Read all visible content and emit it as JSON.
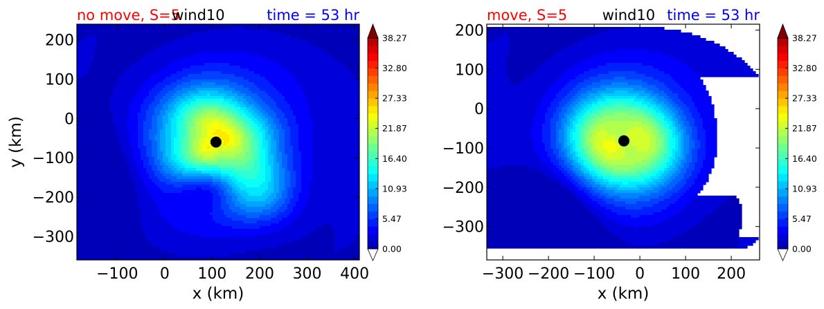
{
  "chart_data": [
    {
      "type": "contour",
      "title_left": "no move, S=5",
      "title_center": "wind10",
      "title_right": "time = 53 hr",
      "title_colors": {
        "left": "#ff0000",
        "center": "#000000",
        "right": "#0000ff"
      },
      "xlabel": "x (km)",
      "ylabel": "y (km)",
      "xlim": [
        -185,
        410
      ],
      "ylim": [
        -360,
        240
      ],
      "xticks": [
        -100,
        0,
        100,
        200,
        300,
        400
      ],
      "xtick_labels": [
        "−100",
        "0",
        "100",
        "200",
        "300",
        "400"
      ],
      "yticks": [
        200,
        100,
        0,
        -100,
        -200,
        -300
      ],
      "ytick_labels": [
        "200",
        "100",
        "0",
        "−100",
        "−200",
        "−300"
      ],
      "center_marker": {
        "x": 108,
        "y": -60
      },
      "colorbar": {
        "min": 0.0,
        "max": 38.27,
        "levels": 28,
        "extend": "both",
        "ticks": [
          0.0,
          5.47,
          10.93,
          16.4,
          21.87,
          27.33,
          32.8,
          38.27
        ],
        "tick_labels": [
          "0.00",
          "5.47",
          "10.93",
          "16.40",
          "21.87",
          "27.33",
          "32.80",
          "38.27"
        ]
      }
    },
    {
      "type": "contour",
      "title_left": "move, S=5",
      "title_center": "wind10",
      "title_right": "time = 53 hr",
      "title_colors": {
        "left": "#ff0000",
        "center": "#000000",
        "right": "#0000ff"
      },
      "xlabel": "x (km)",
      "ylabel": "",
      "xlim": [
        -335,
        262
      ],
      "ylim": [
        -385,
        215
      ],
      "xticks": [
        -300,
        -200,
        -100,
        0,
        100,
        200
      ],
      "xtick_labels": [
        "−300",
        "−200",
        "−100",
        "0",
        "100",
        "200"
      ],
      "yticks": [
        200,
        100,
        0,
        -100,
        -200,
        -300
      ],
      "ytick_labels": [
        "200",
        "100",
        "0",
        "−100",
        "−200",
        "−300"
      ],
      "center_marker": {
        "x": -35,
        "y": -82
      },
      "colorbar": {
        "min": 0.0,
        "max": 38.27,
        "levels": 28,
        "extend": "both",
        "ticks": [
          0.0,
          5.47,
          10.93,
          16.4,
          21.87,
          27.33,
          32.8,
          38.27
        ],
        "tick_labels": [
          "0.00",
          "5.47",
          "10.93",
          "16.40",
          "21.87",
          "27.33",
          "32.80",
          "38.27"
        ]
      }
    }
  ]
}
